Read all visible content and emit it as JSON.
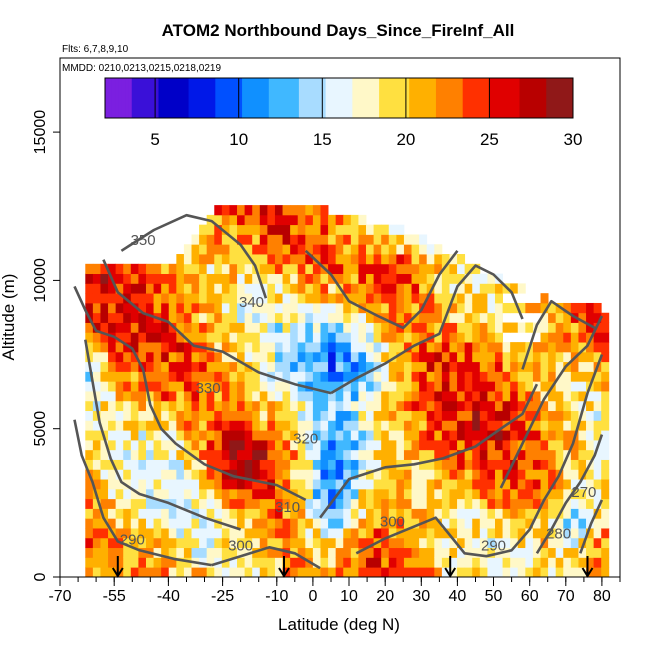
{
  "chart_data": {
    "type": "heatmap",
    "title": "ATOM2 Northbound Days_Since_FireInf_All",
    "flights_note": "Flts: 6,7,8,9,10",
    "date_note": "MMDD: 0210,0213,0215,0218,0219",
    "xlabel": "Latitude (deg N)",
    "ylabel": "Altitude (m)",
    "xlim": [
      -70,
      85
    ],
    "ylim": [
      0,
      17500
    ],
    "x_ticks": [
      -70,
      -55,
      -40,
      -25,
      -10,
      0,
      10,
      20,
      30,
      40,
      50,
      60,
      70,
      80
    ],
    "x_tick_labels": [
      "-70",
      "-55",
      "-40",
      "-25",
      "-10",
      "0",
      "10",
      "20",
      "30",
      "40",
      "50",
      "60",
      "70",
      "80"
    ],
    "y_ticks": [
      0,
      5000,
      10000,
      15000
    ],
    "y_tick_labels": [
      "0",
      "5000",
      "10000",
      "15000"
    ],
    "colorbar": {
      "range": [
        2,
        30
      ],
      "ticks": [
        5,
        10,
        15,
        20,
        25,
        30
      ],
      "tick_labels": [
        "5",
        "10",
        "15",
        "20",
        "25",
        "30"
      ],
      "colors": [
        "#7b1fe0",
        "#3a10d8",
        "#0000c8",
        "#0018e8",
        "#0050ff",
        "#1090ff",
        "#40b8ff",
        "#a8dcff",
        "#e8f6ff",
        "#fff8c8",
        "#ffe040",
        "#ffb000",
        "#ff8000",
        "#ff3000",
        "#e00000",
        "#b80000",
        "#901818"
      ]
    },
    "field_summary": "Values mostly 18-27 days; low values (3-12) near equator 0-10N below 5 km; high values (25-30) near -25 to -15 at 3-5 km and 20-40N above 9 km",
    "contour_labels": [
      "350",
      "340",
      "330",
      "320",
      "310",
      "300",
      "300",
      "290",
      "290",
      "280",
      "270"
    ],
    "contour_levels": [
      270,
      280,
      290,
      300,
      310,
      320,
      330,
      340,
      350
    ],
    "arrow_latitudes": [
      -54,
      -8,
      38,
      76
    ],
    "grid": false,
    "legend": "colorbar top inside plot"
  }
}
